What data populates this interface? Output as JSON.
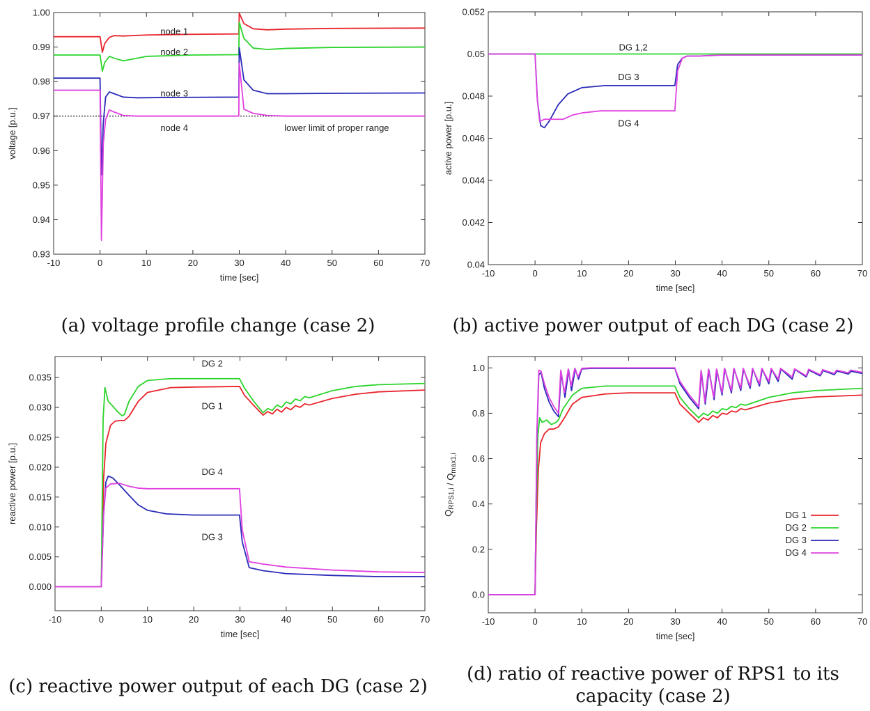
{
  "chart_data": [
    {
      "type": "line",
      "caption": "(a) voltage profile change (case 2)",
      "xlabel": "time [sec]",
      "ylabel": "voltage [p.u.]",
      "xlim": [
        -10,
        70
      ],
      "ylim": [
        0.93,
        1.0
      ],
      "xticks": [
        -10,
        0,
        10,
        20,
        30,
        40,
        50,
        60,
        70
      ],
      "yticks": [
        0.93,
        0.94,
        0.95,
        0.96,
        0.97,
        0.98,
        0.99,
        1.0
      ],
      "ytick_labels": [
        "0.93",
        "0.94",
        "0.95",
        "0.96",
        "0.97",
        "0.98",
        "0.99",
        "1.00"
      ],
      "grid": false,
      "series": [
        {
          "name": "node 1",
          "color": "#e8242c",
          "x": [
            -10,
            0,
            0.5,
            1,
            2,
            3,
            5,
            10,
            20,
            29.9,
            30,
            31,
            33,
            36,
            40,
            50,
            70
          ],
          "y": [
            0.993,
            0.993,
            0.9885,
            0.991,
            0.9928,
            0.9933,
            0.9932,
            0.9935,
            0.9937,
            0.9938,
            0.9998,
            0.9968,
            0.9953,
            0.995,
            0.9952,
            0.9954,
            0.9955
          ]
        },
        {
          "name": "node 2",
          "color": "#2bd42b",
          "x": [
            -10,
            0,
            0.5,
            1,
            2,
            3,
            5,
            10,
            20,
            29.9,
            30,
            31,
            33,
            36,
            40,
            50,
            70
          ],
          "y": [
            0.9877,
            0.9877,
            0.983,
            0.9855,
            0.9873,
            0.9868,
            0.986,
            0.9873,
            0.9877,
            0.9878,
            0.9972,
            0.9925,
            0.9897,
            0.9893,
            0.9896,
            0.9899,
            0.99
          ]
        },
        {
          "name": "node 3",
          "color": "#2a2ab8",
          "x": [
            -10,
            0,
            0.3,
            0.7,
            1.2,
            2,
            3,
            5,
            8,
            15,
            29.9,
            30,
            31,
            33,
            36,
            40,
            50,
            70
          ],
          "y": [
            0.981,
            0.981,
            0.953,
            0.968,
            0.9755,
            0.977,
            0.9765,
            0.9755,
            0.9753,
            0.9754,
            0.9755,
            0.9898,
            0.9805,
            0.9775,
            0.9765,
            0.9765,
            0.9766,
            0.9767
          ]
        },
        {
          "name": "node 4",
          "color": "#e040e0",
          "x": [
            -10,
            0,
            0.3,
            0.7,
            1.2,
            2,
            3,
            5,
            8,
            15,
            29.9,
            30,
            31,
            33,
            36,
            40,
            50,
            70
          ],
          "y": [
            0.9775,
            0.9775,
            0.934,
            0.962,
            0.969,
            0.9718,
            0.9712,
            0.9702,
            0.97,
            0.97,
            0.97,
            0.9853,
            0.972,
            0.9708,
            0.9702,
            0.97,
            0.97,
            0.97
          ]
        }
      ],
      "reference_line": {
        "y": 0.97,
        "label": "lower limit of proper range",
        "style": "dotted"
      },
      "annotations": [
        {
          "text": "node 1",
          "x": 16,
          "y": 0.9945
        },
        {
          "text": "node 2",
          "x": 16,
          "y": 0.9885
        },
        {
          "text": "node 3",
          "x": 16,
          "y": 0.9765
        },
        {
          "text": "node 4",
          "x": 16,
          "y": 0.9665
        },
        {
          "text": "lower limit of proper range",
          "x": 51,
          "y": 0.9665
        }
      ]
    },
    {
      "type": "line",
      "caption": "(b) active power output of each DG (case 2)",
      "xlabel": "time [sec]",
      "ylabel": "active power [p.u.]",
      "xlim": [
        -10,
        70
      ],
      "ylim": [
        0.04,
        0.052
      ],
      "xticks": [
        -10,
        0,
        10,
        20,
        30,
        40,
        50,
        60,
        70
      ],
      "yticks": [
        0.04,
        0.042,
        0.044,
        0.046,
        0.048,
        0.05,
        0.052
      ],
      "ytick_labels": [
        "0.04",
        "0.042",
        "0.044",
        "0.046",
        "0.048",
        "0.05",
        "0.052"
      ],
      "grid": false,
      "series": [
        {
          "name": "DG 1,2",
          "color": "#2bd42b",
          "x": [
            -10,
            70
          ],
          "y": [
            0.05,
            0.05
          ]
        },
        {
          "name": "DG 3",
          "color": "#2a2ab8",
          "x": [
            -10,
            0,
            0.5,
            1.2,
            2,
            3,
            5,
            7,
            10,
            15,
            20,
            29.9,
            30.5,
            31.5,
            32.5,
            35,
            40,
            70
          ],
          "y": [
            0.05,
            0.05,
            0.0478,
            0.0466,
            0.0465,
            0.0468,
            0.0476,
            0.0481,
            0.0484,
            0.0485,
            0.0485,
            0.0485,
            0.0495,
            0.0498,
            0.0499,
            0.0499,
            0.04995,
            0.04995
          ]
        },
        {
          "name": "DG 4",
          "color": "#e040e0",
          "x": [
            -10,
            0,
            0.5,
            1,
            2,
            4,
            6,
            8,
            10,
            14,
            20,
            29.9,
            30.5,
            31.5,
            32.5,
            35,
            40,
            70
          ],
          "y": [
            0.05,
            0.05,
            0.0478,
            0.0468,
            0.0469,
            0.0469,
            0.0469,
            0.0471,
            0.0472,
            0.0473,
            0.0473,
            0.0473,
            0.0492,
            0.0498,
            0.0499,
            0.0499,
            0.04995,
            0.04995
          ]
        }
      ],
      "annotations": [
        {
          "text": "DG 1,2",
          "x": 21,
          "y": 0.0503
        },
        {
          "text": "DG 3",
          "x": 20,
          "y": 0.0489
        },
        {
          "text": "DG 4",
          "x": 20,
          "y": 0.0467
        }
      ]
    },
    {
      "type": "line",
      "caption": "(c) reactive power output of each DG (case 2)",
      "xlabel": "time [sec]",
      "ylabel": "reactive power [p.u.]",
      "xlim": [
        -10,
        70
      ],
      "ylim": [
        -0.004,
        0.0385
      ],
      "xticks": [
        -10,
        0,
        10,
        20,
        30,
        40,
        50,
        60,
        70
      ],
      "yticks": [
        0.0,
        0.005,
        0.01,
        0.015,
        0.02,
        0.025,
        0.03,
        0.035
      ],
      "ytick_labels": [
        "0.000",
        "0.005",
        "0.010",
        "0.015",
        "0.020",
        "0.025",
        "0.030",
        "0.035"
      ],
      "grid": false,
      "series": [
        {
          "name": "DG 1",
          "color": "#e8242c",
          "x": [
            -10,
            0,
            0.5,
            1,
            2,
            3,
            4,
            5,
            6,
            8,
            10,
            15,
            20,
            29.9,
            31,
            33,
            35,
            36,
            37,
            38,
            39,
            40,
            41,
            42,
            43,
            44,
            45,
            50,
            55,
            60,
            70
          ],
          "y": [
            0,
            0,
            0.018,
            0.024,
            0.027,
            0.0277,
            0.0278,
            0.0278,
            0.0285,
            0.031,
            0.0325,
            0.0333,
            0.0334,
            0.0335,
            0.032,
            0.0303,
            0.0287,
            0.0293,
            0.0289,
            0.0297,
            0.0292,
            0.03,
            0.0296,
            0.0303,
            0.03,
            0.0306,
            0.0304,
            0.0315,
            0.0322,
            0.0326,
            0.0329
          ]
        },
        {
          "name": "DG 2",
          "color": "#2bd42b",
          "x": [
            -10,
            0,
            0.4,
            0.8,
            1.5,
            2.5,
            3.5,
            4.5,
            5,
            6,
            8,
            10,
            15,
            20,
            29.9,
            31,
            33,
            35,
            36,
            37,
            38,
            39,
            40,
            41,
            42,
            43,
            44,
            45,
            50,
            55,
            60,
            70
          ],
          "y": [
            0,
            0,
            0.028,
            0.0333,
            0.031,
            0.0302,
            0.0293,
            0.0286,
            0.0288,
            0.031,
            0.0335,
            0.0345,
            0.0348,
            0.0348,
            0.0348,
            0.0332,
            0.031,
            0.0291,
            0.0298,
            0.0295,
            0.0304,
            0.03,
            0.0309,
            0.0306,
            0.0314,
            0.0311,
            0.0318,
            0.0316,
            0.0328,
            0.0335,
            0.0338,
            0.034
          ]
        },
        {
          "name": "DG 3",
          "color": "#2a2ab8",
          "x": [
            -10,
            0,
            0.5,
            1,
            1.5,
            2.5,
            4,
            6,
            8,
            10,
            14,
            20,
            29.9,
            30.5,
            32,
            35,
            40,
            50,
            60,
            70
          ],
          "y": [
            0,
            0,
            0.012,
            0.0175,
            0.0185,
            0.0182,
            0.017,
            0.0153,
            0.0137,
            0.0128,
            0.0122,
            0.012,
            0.012,
            0.0075,
            0.0032,
            0.0027,
            0.0022,
            0.0019,
            0.0017,
            0.0017
          ]
        },
        {
          "name": "DG 4",
          "color": "#e040e0",
          "x": [
            -10,
            0,
            0.5,
            1,
            2,
            4,
            6,
            8,
            10,
            15,
            20,
            29.9,
            30.5,
            32,
            35,
            40,
            50,
            60,
            70
          ],
          "y": [
            0,
            0,
            0.012,
            0.0165,
            0.0172,
            0.0173,
            0.0168,
            0.0165,
            0.0164,
            0.0164,
            0.0164,
            0.0164,
            0.0095,
            0.0042,
            0.0038,
            0.0033,
            0.0028,
            0.0025,
            0.0024
          ]
        }
      ],
      "annotations": [
        {
          "text": "DG 2",
          "x": 24,
          "y": 0.0373
        },
        {
          "text": "DG 1",
          "x": 24,
          "y": 0.0302
        },
        {
          "text": "DG 4",
          "x": 24,
          "y": 0.0192
        },
        {
          "text": "DG 3",
          "x": 24,
          "y": 0.0083
        }
      ]
    },
    {
      "type": "line",
      "caption": "(d) ratio of reactive power of RPS1 to its capacity (case 2)",
      "caption_lines": [
        "(d) ratio of reactive power of RPS1 to its",
        "capacity (case 2)"
      ],
      "xlabel": "time [sec]",
      "ylabel": "QRPS1,i / Qmax1,i",
      "ylabel_parts": {
        "q1": "Q",
        "sub1": "RPS1,i",
        "sep": " / ",
        "q2": "Q",
        "sub2": "max1,i"
      },
      "xlim": [
        -10,
        70
      ],
      "ylim": [
        -0.08,
        1.05
      ],
      "xticks": [
        -10,
        0,
        10,
        20,
        30,
        40,
        50,
        60,
        70
      ],
      "yticks": [
        0.0,
        0.2,
        0.4,
        0.6,
        0.8,
        1.0
      ],
      "ytick_labels": [
        "0.0",
        "0.2",
        "0.4",
        "0.6",
        "0.8",
        "1.0"
      ],
      "grid": false,
      "legend": "bottom-right",
      "series": [
        {
          "name": "DG 1",
          "color": "#e8242c",
          "x": [
            -10,
            0,
            0.3,
            0.7,
            1.2,
            2,
            3,
            4,
            5,
            6,
            8,
            10,
            15,
            20,
            29.9,
            31,
            33,
            35,
            36,
            37,
            38,
            39,
            40,
            41,
            42,
            43,
            44,
            45,
            50,
            55,
            60,
            70
          ],
          "y": [
            0,
            0,
            0.3,
            0.55,
            0.67,
            0.71,
            0.73,
            0.73,
            0.74,
            0.77,
            0.84,
            0.87,
            0.885,
            0.89,
            0.89,
            0.84,
            0.8,
            0.76,
            0.78,
            0.77,
            0.79,
            0.78,
            0.8,
            0.795,
            0.81,
            0.805,
            0.82,
            0.815,
            0.845,
            0.862,
            0.872,
            0.88
          ]
        },
        {
          "name": "DG 2",
          "color": "#2bd42b",
          "x": [
            -10,
            0,
            0.3,
            0.6,
            1,
            1.5,
            2.5,
            3.5,
            4.5,
            5,
            6,
            8,
            10,
            15,
            20,
            29.9,
            31,
            33,
            35,
            36,
            37,
            38,
            39,
            40,
            41,
            42,
            43,
            44,
            45,
            50,
            55,
            60,
            70
          ],
          "y": [
            0,
            0,
            0.4,
            0.7,
            0.78,
            0.76,
            0.77,
            0.75,
            0.76,
            0.77,
            0.82,
            0.88,
            0.91,
            0.92,
            0.92,
            0.92,
            0.87,
            0.82,
            0.78,
            0.8,
            0.79,
            0.81,
            0.8,
            0.82,
            0.815,
            0.83,
            0.825,
            0.84,
            0.835,
            0.87,
            0.89,
            0.9,
            0.91
          ]
        },
        {
          "name": "DG 3",
          "color": "#2a2ab8",
          "x": [
            -10,
            0,
            0.4,
            0.8,
            1.3,
            2,
            3,
            4,
            5,
            5.6,
            6.4,
            7.2,
            7.8,
            8.6,
            9.3,
            10,
            12,
            20,
            29.9,
            31,
            33,
            35,
            35.6,
            36.4,
            37.2,
            38.3,
            38.9,
            40,
            40.6,
            42,
            42.6,
            44,
            44.6,
            46,
            46.6,
            48,
            48.6,
            50,
            50.6,
            52,
            52.6,
            55,
            55.6,
            58,
            58.6,
            61,
            61.6,
            64,
            64.6,
            67,
            67.6,
            70
          ],
          "y": [
            0,
            0,
            0.7,
            0.97,
            0.98,
            0.91,
            0.85,
            0.81,
            0.785,
            0.98,
            0.87,
            0.99,
            0.9,
            0.995,
            0.95,
            0.995,
            0.998,
            0.998,
            0.998,
            0.93,
            0.87,
            0.82,
            0.98,
            0.84,
            0.99,
            0.86,
            0.99,
            0.88,
            0.995,
            0.89,
            0.995,
            0.9,
            0.995,
            0.91,
            0.995,
            0.92,
            0.995,
            0.93,
            0.995,
            0.94,
            0.995,
            0.95,
            0.993,
            0.96,
            0.99,
            0.965,
            0.988,
            0.97,
            0.986,
            0.973,
            0.985,
            0.975
          ]
        },
        {
          "name": "DG 4",
          "color": "#e040e0",
          "x": [
            -10,
            0,
            0.4,
            0.8,
            1.3,
            2,
            3,
            4,
            5,
            5.5,
            6.3,
            7.1,
            7.7,
            8.5,
            9.2,
            10,
            12,
            20,
            29.9,
            31,
            33,
            35,
            35.5,
            36.3,
            37.1,
            38.2,
            38.8,
            40,
            40.5,
            42,
            42.5,
            44,
            44.5,
            46,
            46.5,
            48,
            48.5,
            50,
            50.5,
            52,
            52.5,
            55,
            55.5,
            58,
            58.5,
            61,
            61.5,
            64,
            64.5,
            67,
            67.5,
            70
          ],
          "y": [
            0,
            0,
            0.72,
            0.99,
            0.985,
            0.93,
            0.87,
            0.83,
            0.8,
            0.99,
            0.89,
            0.995,
            0.92,
            0.998,
            0.96,
            0.998,
            1.0,
            1.0,
            1.0,
            0.94,
            0.88,
            0.83,
            0.99,
            0.85,
            0.995,
            0.87,
            0.995,
            0.89,
            0.998,
            0.9,
            0.998,
            0.91,
            0.998,
            0.92,
            0.998,
            0.93,
            0.998,
            0.94,
            0.998,
            0.95,
            0.998,
            0.96,
            0.996,
            0.965,
            0.994,
            0.97,
            0.992,
            0.975,
            0.99,
            0.978,
            0.99,
            0.98
          ]
        }
      ]
    }
  ]
}
